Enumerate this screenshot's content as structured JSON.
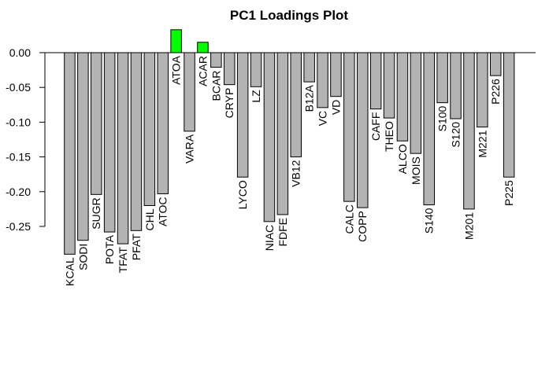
{
  "chart_data": {
    "type": "bar",
    "title": "PC1 Loadings Plot",
    "categories": [
      "KCAL",
      "SODI",
      "SUGR",
      "POTA",
      "TFAT",
      "PFAT",
      "CHL",
      "ATOC",
      "ATOA",
      "VARA",
      "ACAR",
      "BCAR",
      "CRYP",
      "LYCO",
      "LZ",
      "NIAC",
      "FDFE",
      "VB12",
      "B12A",
      "VC",
      "VD",
      "CALC",
      "COPP",
      "CAFF",
      "THEO",
      "ALCO",
      "MOIS",
      "S140",
      "S100",
      "S120",
      "M201",
      "M221",
      "P226",
      "P225"
    ],
    "values": [
      -0.29,
      -0.27,
      -0.204,
      -0.258,
      -0.275,
      -0.256,
      -0.22,
      -0.203,
      0.033,
      -0.113,
      0.015,
      -0.021,
      -0.046,
      -0.179,
      -0.049,
      -0.243,
      -0.233,
      -0.15,
      -0.042,
      -0.079,
      -0.063,
      -0.214,
      -0.223,
      -0.081,
      -0.094,
      -0.127,
      -0.145,
      -0.219,
      -0.072,
      -0.095,
      -0.225,
      -0.107,
      -0.033,
      -0.179
    ],
    "positive_color": "#00ff00",
    "negative_color": "#b3b3b3",
    "ylim": [
      -0.3,
      0.05
    ],
    "yticks": [
      {
        "value": 0,
        "label": "0.00"
      },
      {
        "value": -0.05,
        "label": "-0.05"
      },
      {
        "value": -0.1,
        "label": "-0.10"
      },
      {
        "value": -0.15,
        "label": "-0.15"
      },
      {
        "value": -0.2,
        "label": "-0.20"
      },
      {
        "value": -0.25,
        "label": "-0.25"
      }
    ]
  }
}
